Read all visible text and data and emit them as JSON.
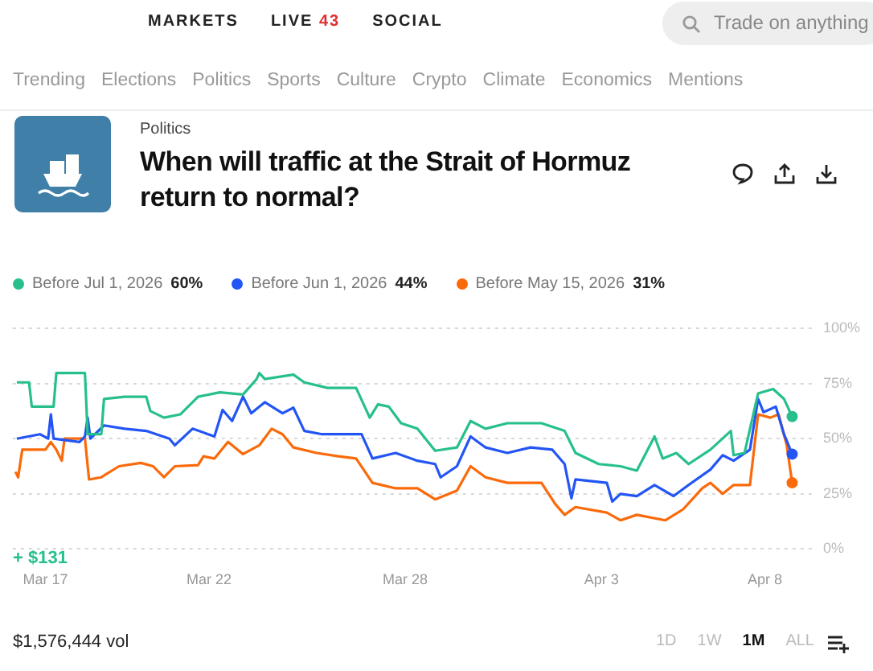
{
  "chart_data": {
    "type": "line",
    "title": "When will traffic at the Strait of Hormuz return to normal?",
    "subtitle": "Politics",
    "legend": "top left",
    "grid": "y",
    "xlim": [
      "--03-16",
      "--04-09T14:00"
    ],
    "xticks": [
      {
        "value": "--03-17",
        "label": "Mar 17"
      },
      {
        "value": "--03-22",
        "label": "Mar 22"
      },
      {
        "value": "--03-28",
        "label": "Mar 28"
      },
      {
        "value": "--04-03",
        "label": "Apr 3"
      },
      {
        "value": "--04-08",
        "label": "Apr 8"
      }
    ],
    "ylim": [
      0,
      100
    ],
    "yticks": [
      {
        "value": 0,
        "label": "0%"
      },
      {
        "value": 25,
        "label": "25%"
      },
      {
        "value": 50,
        "label": "50%"
      },
      {
        "value": 75,
        "label": "75%"
      },
      {
        "value": 100,
        "label": "100%"
      }
    ],
    "series": [
      {
        "name": "Before Jul 1, 2026",
        "color": "#27c08a",
        "x": [
          "--03-16T03:00",
          "--03-16T12:00",
          "--03-16T14:00",
          "--03-17T06:00",
          "--03-17T08:00",
          "--03-18T05:00",
          "--03-18T07:00",
          "--03-18T17:00",
          "--03-18T19:00",
          "--03-19T10:00",
          "--03-20T02:00",
          "--03-20T05:00",
          "--03-20T15:00",
          "--03-21T03:00",
          "--03-21T16:00",
          "--03-22T08:00",
          "--03-23T01:00",
          "--03-23T11:00",
          "--03-23T13:00",
          "--03-23T17:00",
          "--03-24T14:00",
          "--03-24T22:00",
          "--03-25T15:00",
          "--03-26T12:00",
          "--03-26T22:00",
          "--03-27T04:00",
          "--03-27T12:00",
          "--03-27T21:00",
          "--03-28T09:00",
          "--03-28T22:00",
          "--03-29T14:00",
          "--03-30T00:00",
          "--03-30T11:00",
          "--03-31T03:00",
          "--04-01T04:00",
          "--04-01T21:00",
          "--04-02T05:00",
          "--04-02T22:00",
          "--04-03T14:00",
          "--04-04T02:00",
          "--04-04T15:00",
          "--04-04T21:00",
          "--04-05T07:00",
          "--04-05T16:00",
          "--04-06T08:00",
          "--04-06T23:00",
          "--04-07T01:00",
          "--04-07T09:00",
          "--04-07T19:00",
          "--04-08T06:00",
          "--04-08T14:00",
          "--04-08T20:00"
        ],
        "values": [
          75.5,
          75.5,
          64.5,
          64.5,
          79.7,
          79.7,
          52,
          52,
          68,
          69,
          69,
          62.5,
          59.5,
          61,
          69,
          71,
          70,
          77,
          79.7,
          77,
          79,
          75.5,
          73,
          73,
          59.5,
          65.5,
          64.5,
          57,
          54.5,
          44.5,
          46,
          58,
          54.5,
          57,
          57,
          53.5,
          43.5,
          38.5,
          37.5,
          35.5,
          51,
          41,
          43.5,
          38.5,
          45,
          53.5,
          42.5,
          43.5,
          70.5,
          72.5,
          68,
          60
        ]
      },
      {
        "name": "Before Jun 1, 2026",
        "color": "#2355f5",
        "x": [
          "--03-16T03:00",
          "--03-16T20:00",
          "--03-17T02:00",
          "--03-17T04:00",
          "--03-17T06:00",
          "--03-18T01:00",
          "--03-18T05:00",
          "--03-18T07:00",
          "--03-18T09:00",
          "--03-18T19:00",
          "--03-19T10:00",
          "--03-20T02:00",
          "--03-20T19:00",
          "--03-20T23:00",
          "--03-21T12:00",
          "--03-22T04:00",
          "--03-22T10:00",
          "--03-22T17:00",
          "--03-23T01:00",
          "--03-23T07:00",
          "--03-23T17:00",
          "--03-24T06:00",
          "--03-24T14:00",
          "--03-24T22:00",
          "--03-25T11:00",
          "--03-26T16:00",
          "--03-27T00:00",
          "--03-27T17:00",
          "--03-28T09:00",
          "--03-28T22:00",
          "--03-29T02:00",
          "--03-29T14:00",
          "--03-30T00:00",
          "--03-30T11:00",
          "--03-31T03:00",
          "--03-31T20:00",
          "--04-01T12:00",
          "--04-01T21:00",
          "--04-02T02:00",
          "--04-02T05:00",
          "--04-03T04:00",
          "--04-03T08:00",
          "--04-03T14:00",
          "--04-04T02:00",
          "--04-04T15:00",
          "--04-05T05:00",
          "--04-05T16:00",
          "--04-06T08:00",
          "--04-06T17:00",
          "--04-07T01:00",
          "--04-07T13:00",
          "--04-07T19:00",
          "--04-07T23:00",
          "--04-08T08:00",
          "--04-08T14:00",
          "--04-08T20:00"
        ],
        "values": [
          50,
          52,
          50,
          61,
          50,
          48.5,
          51,
          59.5,
          50,
          56,
          54.5,
          53.5,
          50,
          47,
          54.5,
          51,
          63,
          58,
          69,
          61.5,
          66.5,
          61.5,
          64,
          53.5,
          52,
          52,
          41,
          43.5,
          40,
          38.5,
          32.5,
          37.5,
          51,
          46,
          43.5,
          46,
          45,
          38.5,
          23,
          31.5,
          30,
          21.5,
          25,
          24,
          29,
          24,
          29,
          36,
          42.5,
          40,
          45,
          68,
          62,
          64.5,
          52,
          43
        ]
      },
      {
        "name": "Before May 15, 2026",
        "color": "#fa6a0a",
        "x": [
          "--03-16T02:00",
          "--03-16T04:00",
          "--03-16T07:00",
          "--03-17T00:00",
          "--03-17T04:00",
          "--03-17T08:00",
          "--03-17T12:00",
          "--03-17T14:00",
          "--03-18T05:00",
          "--03-18T08:00",
          "--03-18T17:00",
          "--03-19T06:00",
          "--03-19T22:00",
          "--03-20T07:00",
          "--03-20T15:00",
          "--03-20T23:00",
          "--03-21T16:00",
          "--03-21T20:00",
          "--03-22T04:00",
          "--03-22T14:00",
          "--03-23T01:00",
          "--03-23T13:00",
          "--03-23T22:00",
          "--03-24T06:00",
          "--03-24T14:00",
          "--03-25T07:00",
          "--03-25T23:00",
          "--03-26T12:00",
          "--03-27T00:00",
          "--03-27T17:00",
          "--03-28T09:00",
          "--03-28T22:00",
          "--03-29T14:00",
          "--03-30T00:00",
          "--03-30T11:00",
          "--03-31T03:00",
          "--04-01T04:00",
          "--04-01T14:00",
          "--04-01T21:00",
          "--04-02T05:00",
          "--04-03T04:00",
          "--04-03T14:00",
          "--04-04T02:00",
          "--04-04T23:00",
          "--04-05T12:00",
          "--04-06T02:00",
          "--04-06T08:00",
          "--04-06T17:00",
          "--04-07T01:00",
          "--04-07T13:00",
          "--04-07T19:00",
          "--04-08T04:00",
          "--04-08T10:00",
          "--04-08T16:00",
          "--04-08T20:00"
        ],
        "values": [
          35,
          32.5,
          45,
          45,
          48.5,
          45,
          40,
          50,
          50,
          31.5,
          32.5,
          37.5,
          39,
          37.5,
          32.5,
          37.5,
          38,
          42,
          41,
          48.5,
          43,
          47,
          54.5,
          52,
          46,
          43.5,
          42,
          41,
          30,
          27.5,
          27.5,
          22.5,
          26.5,
          37.5,
          32.5,
          30,
          30,
          20.5,
          15.5,
          19,
          16.5,
          13,
          15.5,
          13,
          18,
          27.5,
          30,
          25,
          29,
          29,
          61,
          59.5,
          61,
          47,
          30
        ]
      }
    ],
    "annotations": [
      "60%",
      "44%",
      "31%",
      "+ $131",
      "$1,576,444 vol",
      "1D",
      "1W",
      "1M",
      "ALL",
      "MARKETS",
      "LIVE",
      "43",
      "SOCIAL",
      "Trade on anything",
      "Trending",
      "Elections",
      "Politics",
      "Sports",
      "Culture",
      "Crypto",
      "Climate",
      "Economics",
      "Mentions"
    ]
  }
}
